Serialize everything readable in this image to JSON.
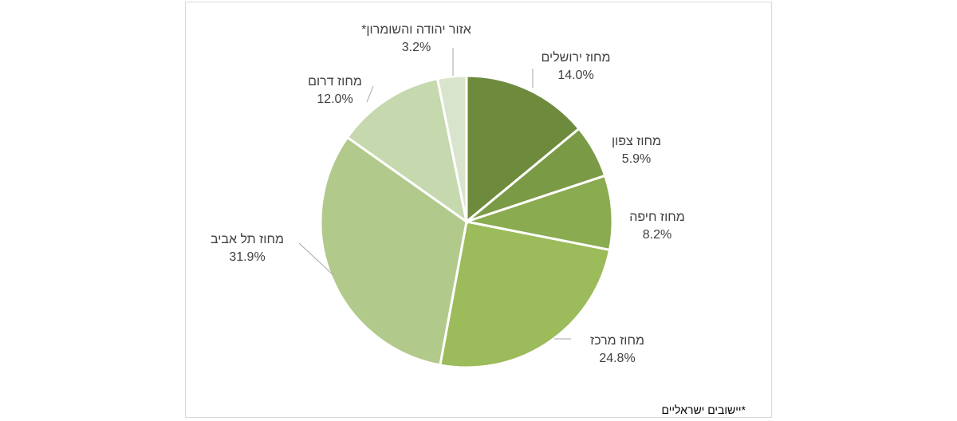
{
  "chart_data": {
    "type": "pie",
    "title": "",
    "start_angle_deg": 0,
    "direction": "clockwise",
    "slices": [
      {
        "label": "מחוז ירושלים",
        "value": 14.0,
        "value_label": "14.0%",
        "color": "#6e8b3d"
      },
      {
        "label": "מחוז צפון",
        "value": 5.9,
        "value_label": "5.9%",
        "color": "#7b9a45"
      },
      {
        "label": "מחוז חיפה",
        "value": 8.2,
        "value_label": "8.2%",
        "color": "#8aab50"
      },
      {
        "label": "מחוז מרכז",
        "value": 24.8,
        "value_label": "24.8%",
        "color": "#9cbb5a"
      },
      {
        "label": "מחוז תל אביב",
        "value": 31.9,
        "value_label": "31.9%",
        "color": "#b1ca8c"
      },
      {
        "label": "מחוז דרום",
        "value": 12.0,
        "value_label": "12.0%",
        "color": "#c5d8ae"
      },
      {
        "label": "אזור יהודה והשומרון*",
        "value": 3.2,
        "value_label": "3.2%",
        "color": "#d9e4cc"
      }
    ],
    "footnote": "*יישובים ישראליים"
  }
}
